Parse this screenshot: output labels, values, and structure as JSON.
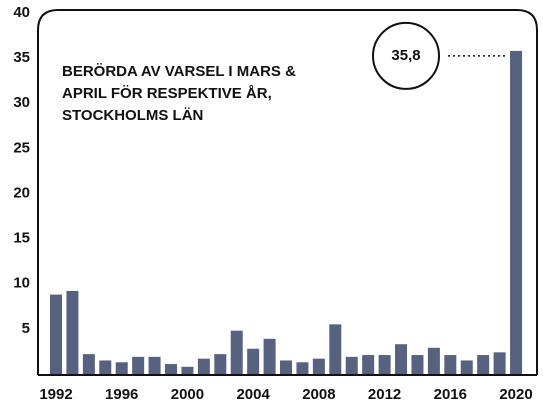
{
  "chart_data": {
    "type": "bar",
    "title": [
      "BERÖRDA AV VARSEL I MARS &",
      "APRIL FÖR RESPEKTIVE ÅR,",
      "STOCKHOLMS LÄN"
    ],
    "categories": [
      "1992",
      null,
      null,
      null,
      "1996",
      null,
      null,
      null,
      "2000",
      null,
      null,
      null,
      "2004",
      null,
      null,
      null,
      "2008",
      null,
      null,
      null,
      "2012",
      null,
      null,
      null,
      "2016",
      null,
      null,
      null,
      "2020"
    ],
    "values": [
      8.8,
      9.2,
      2.2,
      1.5,
      1.3,
      1.9,
      1.9,
      1.1,
      0.8,
      1.7,
      2.2,
      4.8,
      2.8,
      3.9,
      1.5,
      1.3,
      1.7,
      5.5,
      1.9,
      2.1,
      2.1,
      3.3,
      2.1,
      2.9,
      2.1,
      1.5,
      2.1,
      2.4,
      35.8
    ],
    "value_labels": [
      null,
      null,
      null,
      null,
      null,
      null,
      null,
      null,
      null,
      null,
      null,
      null,
      null,
      null,
      null,
      null,
      null,
      null,
      null,
      null,
      null,
      null,
      null,
      null,
      null,
      null,
      null,
      null,
      "35,8"
    ],
    "color": "#56627f",
    "ylim": [
      0,
      40
    ],
    "yticks": [
      5,
      10,
      15,
      20,
      25,
      30,
      35,
      40
    ],
    "grid": false
  }
}
